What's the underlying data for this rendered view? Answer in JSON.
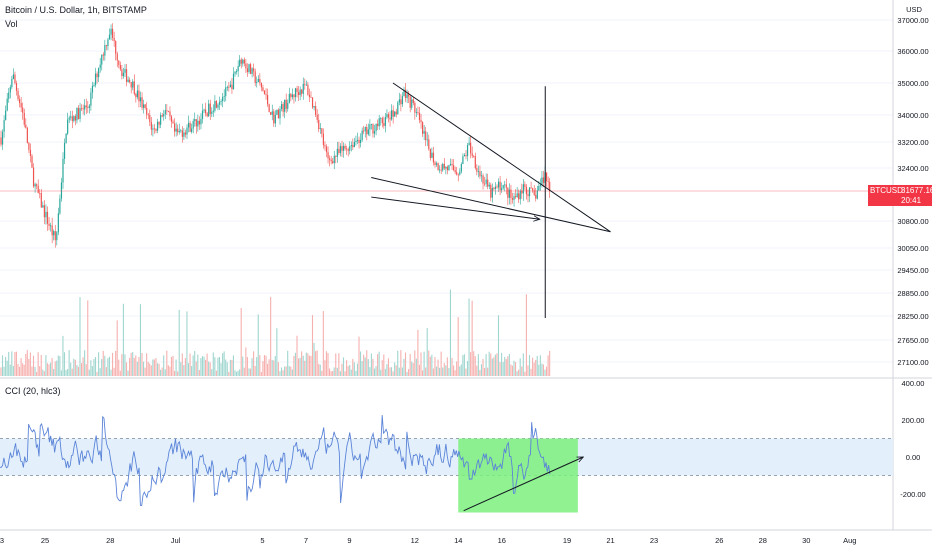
{
  "header": {
    "title": "Bitcoin / U.S. Dollar, 1h, BITSTAMP",
    "volume_label": "Vol",
    "indicator_label": "CCI (20, hlc3)"
  },
  "price_tag": {
    "symbol": "BTCUSD",
    "price": "31677.16",
    "countdown": "20:41"
  },
  "colors": {
    "up": "#26a69a",
    "down": "#ef5350",
    "vol_up": "#9fd6cf",
    "vol_down": "#f6b0ae",
    "cci": "#5b84d8",
    "cci_band": "#e3f0fc",
    "price_line": "#f23645",
    "highlight": "#7cf07c",
    "drawing": "#131722"
  },
  "chart_data": [
    {
      "type": "candlestick",
      "title": "Bitcoin / U.S. Dollar, 1h, BITSTAMP",
      "currency_label": "USD",
      "y_ticks": [
        "37000.00",
        "36000.00",
        "35000.00",
        "34000.00",
        "33200.00",
        "32400.00",
        "31677.16",
        "30800.00",
        "30050.00",
        "29450.00",
        "28850.00",
        "28250.00",
        "27650.00",
        "27100.00"
      ],
      "last_price": 31677.16,
      "x_ticks": [
        "3",
        "25",
        "28",
        "Jul",
        "5",
        "7",
        "9",
        "12",
        "14",
        "16",
        "19",
        "21",
        "23",
        "26",
        "28",
        "30",
        "Aug"
      ],
      "price_path": [
        [
          "Jun 22",
          33800
        ],
        [
          "Jun 23",
          33300
        ],
        [
          "Jun 23 12h",
          35300
        ],
        [
          "Jun 24",
          34000
        ],
        [
          "Jun 24 12h",
          31900
        ],
        [
          "Jun 25",
          31000
        ],
        [
          "Jun 25 12h",
          30200
        ],
        [
          "Jun 26",
          33800
        ],
        [
          "Jun 27",
          34300
        ],
        [
          "Jun 27 12h",
          35600
        ],
        [
          "Jun 28",
          36700
        ],
        [
          "Jun 28 12h",
          35400
        ],
        [
          "Jun 29",
          35000
        ],
        [
          "Jun 30",
          33500
        ],
        [
          "Jun 30 12h",
          34200
        ],
        [
          "Jul 1",
          33400
        ],
        [
          "Jul 2",
          33800
        ],
        [
          "Jul 3",
          34500
        ],
        [
          "Jul 3 12h",
          34800
        ],
        [
          "Jul 4",
          35800
        ],
        [
          "Jul 5",
          34800
        ],
        [
          "Jul 5 12h",
          33900
        ],
        [
          "Jul 6",
          34300
        ],
        [
          "Jul 6 12h",
          34700
        ],
        [
          "Jul 7",
          34900
        ],
        [
          "Jul 7 12h",
          34000
        ],
        [
          "Jul 8",
          32600
        ],
        [
          "Jul 9",
          33100
        ],
        [
          "Jul 10",
          33600
        ],
        [
          "Jul 11",
          34000
        ],
        [
          "Jul 11 12h",
          34700
        ],
        [
          "Jul 12",
          34200
        ],
        [
          "Jul 12 12h",
          33200
        ],
        [
          "Jul 13",
          32500
        ],
        [
          "Jul 14",
          32300
        ],
        [
          "Jul 14 12h",
          33100
        ],
        [
          "Jul 15",
          32200
        ],
        [
          "Jul 15 12h",
          31600
        ],
        [
          "Jul 16",
          31900
        ],
        [
          "Jul 16 12h",
          31400
        ],
        [
          "Jul 17",
          31800
        ],
        [
          "Jul 17 12h",
          31500
        ],
        [
          "Jul 18",
          32200
        ],
        [
          "Jul 18 6h",
          31677
        ]
      ],
      "drawings": [
        {
          "kind": "line",
          "from": [
            "Jul 11",
            35000
          ],
          "to": [
            "Jul 21",
            30500
          ]
        },
        {
          "kind": "line",
          "from": [
            "Jul 10",
            32100
          ],
          "to": [
            "Jul 21",
            30500
          ]
        },
        {
          "kind": "arrow",
          "from": [
            "Jul 10",
            31500
          ],
          "to": [
            "Jul 17 18h",
            30850
          ]
        },
        {
          "kind": "vertical",
          "at": "Jul 18",
          "from": 34900,
          "to": 28200
        }
      ]
    },
    {
      "type": "bar",
      "title": "Vol",
      "note": "hourly volume bars, green for up candles and red for down candles"
    },
    {
      "type": "line",
      "title": "CCI (20, hlc3)",
      "y_ticks": [
        "400.00",
        "200.00",
        "0.00",
        "-200.00"
      ],
      "ylim": [
        -290,
        400
      ],
      "band": [
        -100,
        100
      ],
      "highlight_box": {
        "x_from": "Jul 14",
        "x_to": "Jul 19 12h",
        "y_from": 100,
        "y_to": -300
      },
      "trend_arrow": {
        "from": [
          "Jul 14 6h",
          -290
        ],
        "to": [
          "Jul 19 18h",
          0
        ]
      }
    }
  ]
}
